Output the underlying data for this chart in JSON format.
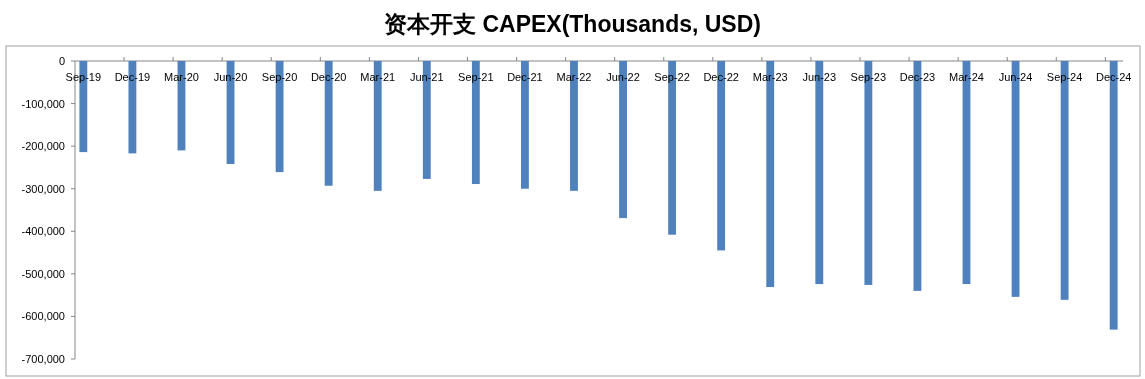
{
  "chart_data": {
    "type": "bar",
    "title": "资本开支 CAPEX(Thousands, USD)",
    "categories": [
      "Sep-19",
      "Dec-19",
      "Mar-20",
      "Jun-20",
      "Sep-20",
      "Dec-20",
      "Mar-21",
      "Jun-21",
      "Sep-21",
      "Dec-21",
      "Mar-22",
      "Jun-22",
      "Sep-22",
      "Dec-22",
      "Mar-23",
      "Jun-23",
      "Sep-23",
      "Dec-23",
      "Mar-24",
      "Jun-24",
      "Sep-24",
      "Dec-24"
    ],
    "series": [
      {
        "color": "#4f81bd",
        "values": [
          -214000,
          -217000,
          -210000,
          -242000,
          -261000,
          -293000,
          -305000,
          -277000,
          -289000,
          -300000,
          -305000,
          -369000,
          -408000,
          -445000,
          -531000,
          -524000,
          -526000,
          -540000,
          -524000,
          -554000,
          -561000,
          -631000
        ]
      }
    ],
    "ylim": [
      -700000,
      0
    ],
    "yticks": [
      {
        "value": 0,
        "label": "0"
      },
      {
        "value": -100000,
        "label": "-100,000"
      },
      {
        "value": -200000,
        "label": "-200,000"
      },
      {
        "value": -300000,
        "label": "-300,000"
      },
      {
        "value": -400000,
        "label": "-400,000"
      },
      {
        "value": -500000,
        "label": "-500,000"
      },
      {
        "value": -600000,
        "label": "-600,000"
      },
      {
        "value": -700000,
        "label": "-700,000"
      }
    ],
    "grid": false
  }
}
